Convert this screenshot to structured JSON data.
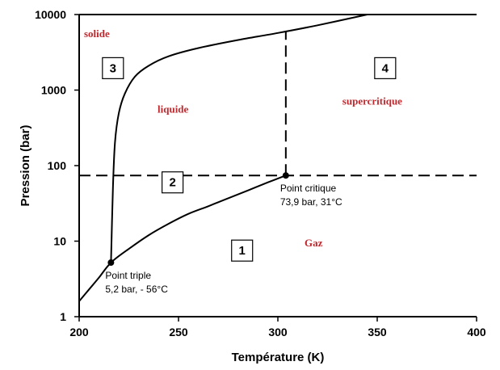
{
  "chart_data": {
    "type": "line",
    "xlabel": "Température (K)",
    "ylabel": "Pression (bar)",
    "xlim": [
      200,
      400
    ],
    "ylim": [
      1,
      10000
    ],
    "yscale": "log",
    "x_ticks": [
      "200",
      "250",
      "300",
      "350",
      "400"
    ],
    "y_ticks": [
      "1",
      "10",
      "100",
      "1000",
      "10000"
    ],
    "series": [
      {
        "x": [
          200,
          205,
          210,
          216,
          225,
          235,
          245,
          255,
          265,
          275,
          285,
          295,
          304
        ],
        "y": [
          1.6,
          2.3,
          3.3,
          5.2,
          7.9,
          12,
          17,
          23,
          29,
          37,
          47,
          60,
          74
        ]
      },
      {
        "x": [
          216,
          217,
          218,
          220,
          223,
          228,
          235,
          245,
          260,
          280,
          300,
          320,
          345
        ],
        "y": [
          5.2,
          50,
          200,
          500,
          900,
          1500,
          2100,
          2800,
          3600,
          4600,
          5700,
          7200,
          10000
        ]
      }
    ],
    "dashed_lines": [
      {
        "orientation": "horizontal",
        "y": 74,
        "x_from": 200,
        "x_to": 400
      },
      {
        "orientation": "vertical",
        "x": 304,
        "y_from": 74,
        "y_to": 6000
      }
    ],
    "points": [
      {
        "x": 216,
        "y": 5.2,
        "label_line1": "Point triple",
        "label_line2": "5,2 bar, - 56°C"
      },
      {
        "x": 304,
        "y": 74,
        "label_line1": "Point critique",
        "label_line2": "73,9 bar, 31°C"
      }
    ],
    "region_labels": [
      {
        "text": "solide",
        "x": 200,
        "y": 5000
      },
      {
        "text": "liquide",
        "x": 237,
        "y": 500
      },
      {
        "text": "supercritique",
        "x": 330,
        "y": 640
      },
      {
        "text": "Gaz",
        "x": 311,
        "y": 8.5
      }
    ],
    "boxes": [
      {
        "text": "3",
        "x": 217,
        "y": 1950
      },
      {
        "text": "4",
        "x": 354,
        "y": 1950
      },
      {
        "text": "2",
        "x": 247,
        "y": 60
      },
      {
        "text": "1",
        "x": 282,
        "y": 7.5
      }
    ]
  }
}
